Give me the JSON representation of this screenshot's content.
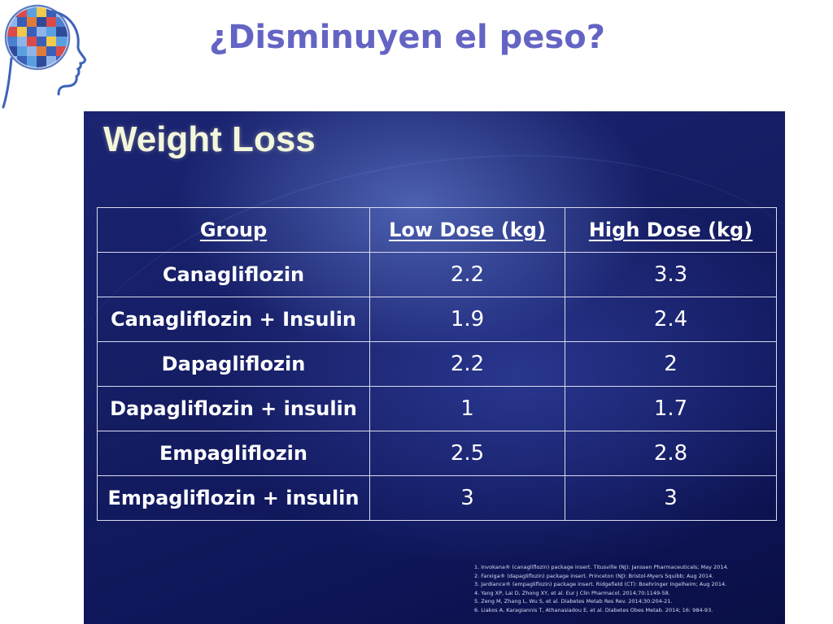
{
  "header": {
    "title": "¿Disminuyen el peso?"
  },
  "slide": {
    "title": "Weight Loss",
    "table": {
      "headers": [
        "Group",
        "Low Dose (kg)",
        "High Dose (kg)"
      ],
      "rows": [
        [
          "Canagliflozin",
          "2.2",
          "3.3"
        ],
        [
          "Canagliflozin + Insulin",
          "1.9",
          "2.4"
        ],
        [
          "Dapagliflozin",
          "2.2",
          "2"
        ],
        [
          "Dapagliflozin + insulin",
          "1",
          "1.7"
        ],
        [
          "Empagliflozin",
          "2.5",
          "2.8"
        ],
        [
          "Empagliflozin + insulin",
          "3",
          "3"
        ]
      ]
    },
    "references": [
      "1. Invokana® (canagliflozin) package insert. Titusville (NJ): Janssen Pharmaceuticals; May 2014.",
      "2. Farxiga® (dapagliflozin) package insert. Princeton (NJ): Bristol-Myers Squibb; Aug 2014.",
      "3. Jardiance® (empagliflozin) package insert. Ridgefield (CT): Boehringer Ingelheim; Aug 2014.",
      "4. Yang XP, Lai D, Zhong XY, et al. Eur J Clin Pharmacol. 2014;70:1149-58.",
      "5. Zeng M, Zhang L, Wu S, et al. Diabetes Metab Res Rev. 2014;30:204-21.",
      "6. Liakos A, Karagiannis T, Athanasiadou E, et al. Diabetes Obes Metab. 2014; 16: 984-93."
    ]
  },
  "colors": {
    "title": "#6464c4",
    "slide_background": "#151d63",
    "slide_title": "#f3f7dc",
    "table_text": "#ffffff",
    "table_border": "#d9dcef"
  },
  "icons": {
    "logo": "head-profile-puzzle-logo"
  }
}
